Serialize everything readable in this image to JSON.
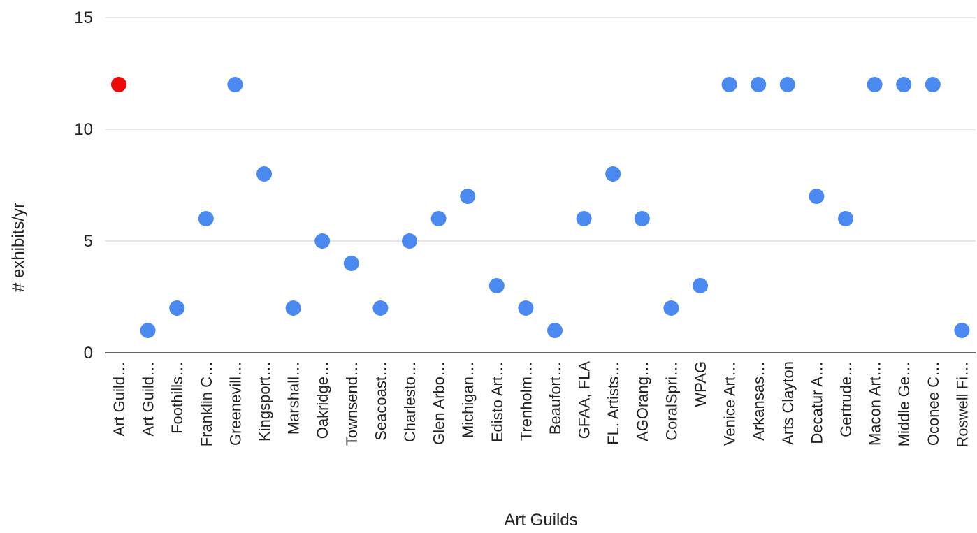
{
  "chart_data": {
    "type": "scatter",
    "title": "",
    "xlabel": "Art Guilds",
    "ylabel": "# exhibits/yr",
    "ylim": [
      0,
      15
    ],
    "yticks": [
      0,
      5,
      10,
      15
    ],
    "grid": true,
    "legend": "none",
    "default_color": "#4a89f0",
    "highlight_color": "#ee0a0a",
    "categories": [
      "Art Guild…",
      "Art Guild…",
      "Foothills…",
      "Franklin C…",
      "Greenevill…",
      "Kingsport…",
      "Marshall…",
      "Oakridge…",
      "Townsend…",
      "Seacoast…",
      "Charlesto…",
      "Glen Arbo…",
      "Michigan…",
      "Edisto Art…",
      "Trenholm…",
      "Beaufort…",
      "GFAA, FLA",
      "FL. Artists…",
      "AGOrang…",
      "CoralSpri…",
      "WPAG",
      "Venice Art…",
      "Arkansas…",
      "Arts Clayton",
      "Decatur A…",
      "Gertrude…",
      "Macon Art…",
      "Middle Ge…",
      "Oconee C…",
      "Roswell Fi…"
    ],
    "values": [
      12,
      1,
      2,
      6,
      12,
      8,
      2,
      5,
      4,
      2,
      5,
      6,
      7,
      3,
      2,
      1,
      6,
      8,
      6,
      2,
      3,
      12,
      12,
      12,
      7,
      6,
      12,
      12,
      12,
      1
    ],
    "highlight_index": 0
  }
}
